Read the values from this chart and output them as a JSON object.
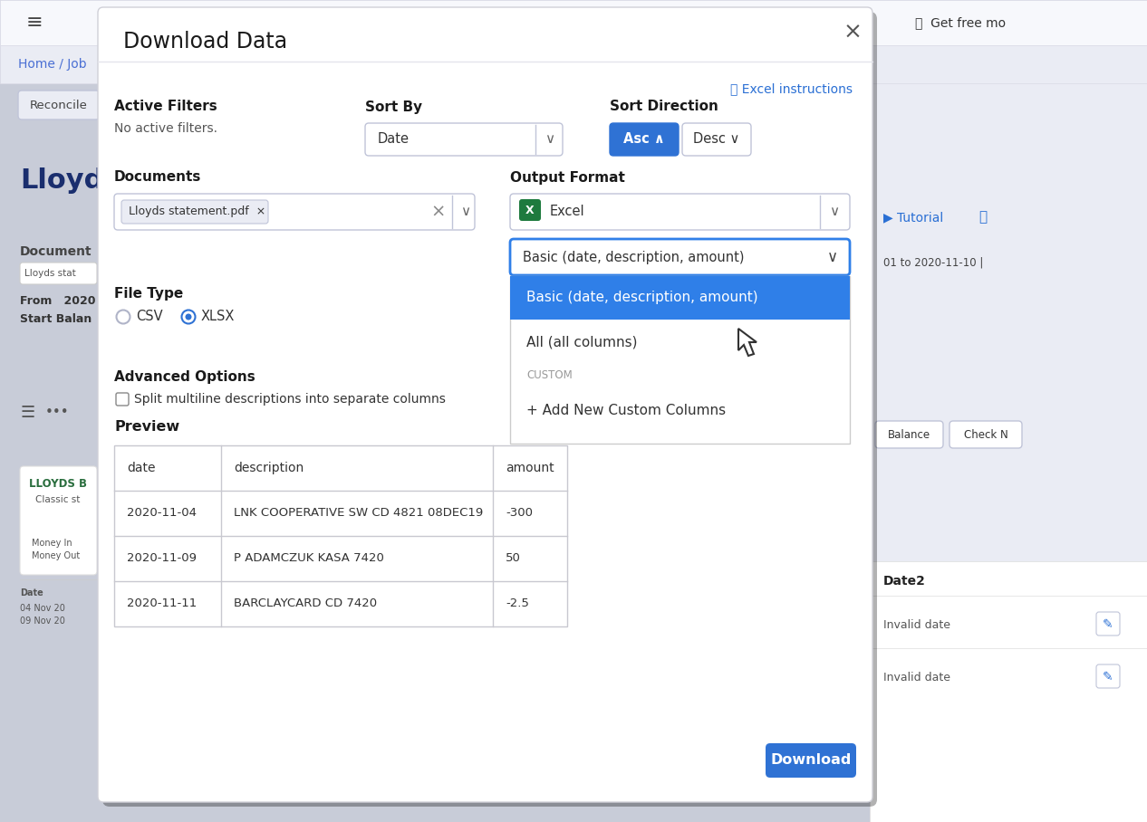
{
  "bg_color": "#c8ccd8",
  "title": "Download Data",
  "close_x": "×",
  "header_link_text": "Excel instructions",
  "active_filters_label": "Active Filters",
  "active_filters_value": "No active filters.",
  "sort_by_label": "Sort By",
  "sort_by_value": "Date",
  "sort_direction_label": "Sort Direction",
  "asc_text": "Asc ∧",
  "desc_text": "Desc ∨",
  "documents_label": "Documents",
  "documents_tag": "Lloyds statement.pdf  ×",
  "output_format_label": "Output Format",
  "output_format_value": "Excel",
  "dropdown_selected": "Basic (date, description, amount)",
  "file_type_label": "File Type",
  "csv_label": "CSV",
  "xlsx_label": "XLSX",
  "advanced_options_label": "Advanced Options",
  "advanced_options_checkbox": "Split multiline descriptions into separate columns",
  "preview_label": "Preview",
  "table_headers": [
    "date",
    "description",
    "amount"
  ],
  "table_rows": [
    [
      "2020-11-04",
      "LNK COOPERATIVE SW CD 4821 08DEC19",
      "-300"
    ],
    [
      "2020-11-09",
      "P ADAMCZUK KASA 7420",
      "50"
    ],
    [
      "2020-11-11",
      "BARCLAYCARD CD 7420",
      "-2.5"
    ]
  ],
  "dropdown_option_basic": "Basic (date, description, amount)",
  "dropdown_option_all": "All (all columns)",
  "dropdown_option_custom_label": "CUSTOM",
  "dropdown_option_add": "+ Add New Custom Columns",
  "download_btn_text": "Download",
  "download_btn_color": "#2f72d4",
  "asc_btn_color": "#2f72d4",
  "asc_text_color": "#ffffff",
  "desc_btn_color": "#ffffff",
  "desc_text_color": "#333333",
  "selected_dropdown_color": "#2f7fe8",
  "selected_text_color": "#ffffff",
  "dropdown_border_color": "#2f7fe8",
  "modal_shadow": "#00000020",
  "top_bar_bg": "#f7f8fc",
  "top_bar_text": "Get free mo",
  "breadcrumb": "Home / Job",
  "reconcile_text": "Reconcile",
  "lloyds_title": "Lloyds",
  "document_label": "Document",
  "lloyds_stat": "Lloyds stat",
  "from_text": "From   2020",
  "start_balance": "Start Balan",
  "tutorial_text": "Tutorial",
  "right_date_range": "01 to 2020-11-10 |",
  "right_balance": "Balance",
  "right_check": "Check N",
  "right_date2": "Date2",
  "right_invalid1": "Invalid date",
  "right_invalid2": "Invalid date",
  "left_lloyds_b": "LLOYDS B",
  "left_classic": "Classic st",
  "left_money_in": "Money In",
  "left_money_out": "Money Out",
  "left_date": "Date",
  "left_04nov": "04 Nov 20",
  "left_09nov": "09 Nov 20"
}
